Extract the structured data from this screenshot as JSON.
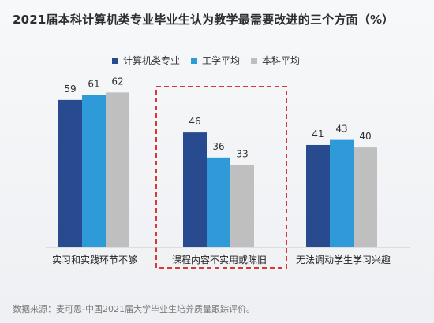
{
  "title": "2021届本科计算机类专业毕业生认为教学最需要改进的三个方面（%）",
  "source_note": "数据来源：麦可思-中国2021届大学毕业生培养质量跟踪评价。",
  "legend": {
    "items": [
      {
        "label": "计算机类专业",
        "color": "#284b8f"
      },
      {
        "label": "工学平均",
        "color": "#2f9ad8"
      },
      {
        "label": "本科平均",
        "color": "#bfbfbf"
      }
    ]
  },
  "chart_data": {
    "type": "bar",
    "title": "2021届本科计算机类专业毕业生认为教学最需要改进的三个方面（%）",
    "categories": [
      "实习和实践环节不够",
      "课程内容不实用或陈旧",
      "无法调动学生学习兴趣"
    ],
    "series": [
      {
        "name": "计算机类专业",
        "values": [
          59,
          46,
          41
        ],
        "color": "#284b8f"
      },
      {
        "name": "工学平均",
        "values": [
          61,
          36,
          43
        ],
        "color": "#2f9ad8"
      },
      {
        "name": "本科平均",
        "values": [
          62,
          33,
          40
        ],
        "color": "#bfbfbf"
      }
    ],
    "xlabel": "",
    "ylabel": "",
    "ylim": [
      0,
      70
    ],
    "grid": false,
    "legend_position": "top",
    "highlight_category": "课程内容不实用或陈旧"
  }
}
